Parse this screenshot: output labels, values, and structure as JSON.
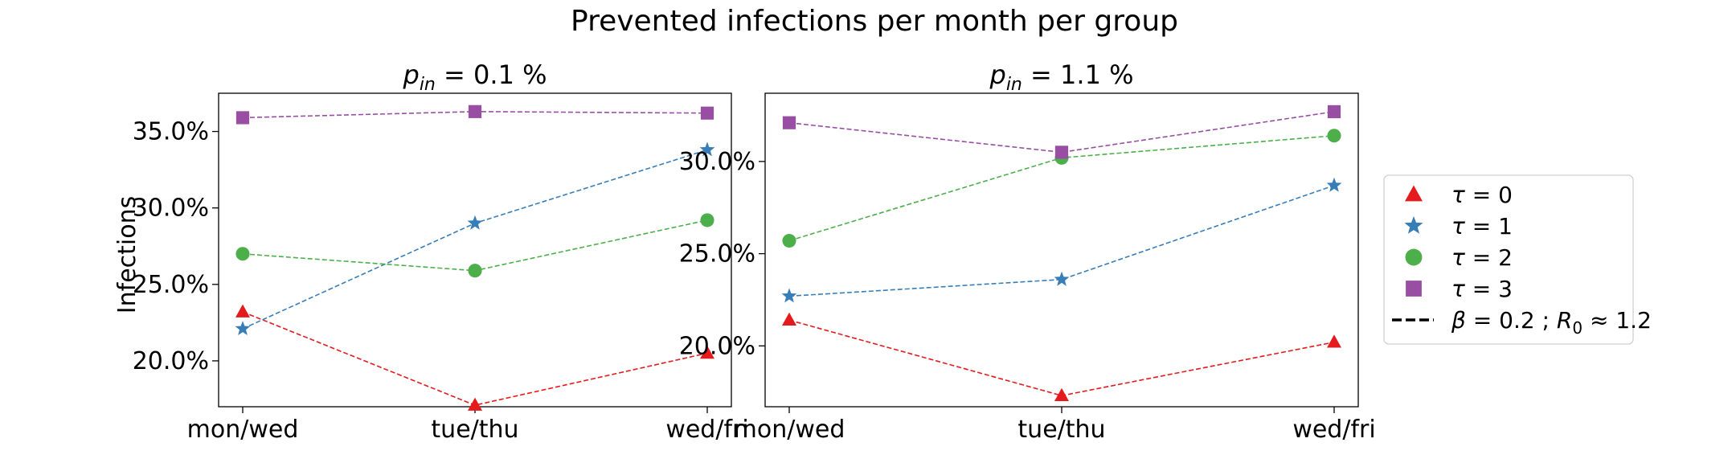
{
  "figure": {
    "suptitle": "Prevented infections per month per group",
    "ylabel": "Infections"
  },
  "legend": {
    "placement": "center-right",
    "entries": [
      {
        "label_prefix": "τ",
        "label_rest": " = 0",
        "marker": "triangle",
        "color": "#e41a1c",
        "style": "marker"
      },
      {
        "label_prefix": "τ",
        "label_rest": " = 1",
        "marker": "star",
        "color": "#377eb8",
        "style": "marker"
      },
      {
        "label_prefix": "τ",
        "label_rest": " = 2",
        "marker": "circle",
        "color": "#4daf4a",
        "style": "marker"
      },
      {
        "label_prefix": "τ",
        "label_rest": " = 3",
        "marker": "square",
        "color": "#984ea3",
        "style": "marker"
      },
      {
        "label_prefix": "β",
        "label_rest": " = 0.2 ; ",
        "label_r": "R",
        "label_r_sub": "0",
        "label_end": " ≈ 1.2",
        "style": "dashed-line",
        "color": "#000000"
      }
    ]
  },
  "chart_data": [
    {
      "type": "line",
      "title_p": "p",
      "title_sub": "in",
      "title_rest": " = 0.1 %",
      "categories": [
        "mon/wed",
        "tue/thu",
        "wed/fri"
      ],
      "ylim": [
        17.0,
        37.5
      ],
      "yticks": [
        20,
        25,
        30,
        35
      ],
      "ytick_labels": [
        "20.0%",
        "25.0%",
        "30.0%",
        "35.0%"
      ],
      "grid": false,
      "series": [
        {
          "name": "τ = 0",
          "marker": "triangle",
          "color": "#e41a1c",
          "values": [
            23.2,
            17.1,
            20.5
          ]
        },
        {
          "name": "τ = 1",
          "marker": "star",
          "color": "#377eb8",
          "values": [
            22.1,
            29.0,
            33.8
          ]
        },
        {
          "name": "τ = 2",
          "marker": "circle",
          "color": "#4daf4a",
          "values": [
            27.0,
            25.9,
            29.2
          ]
        },
        {
          "name": "τ = 3",
          "marker": "square",
          "color": "#984ea3",
          "values": [
            35.9,
            36.3,
            36.2
          ]
        }
      ]
    },
    {
      "type": "line",
      "title_p": "p",
      "title_sub": "in",
      "title_rest": " = 1.1 %",
      "categories": [
        "mon/wed",
        "tue/thu",
        "wed/fri"
      ],
      "ylim": [
        16.7,
        33.7
      ],
      "yticks": [
        20,
        25,
        30
      ],
      "ytick_labels": [
        "20.0%",
        "25.0%",
        "30.0%"
      ],
      "grid": false,
      "series": [
        {
          "name": "τ = 0",
          "marker": "triangle",
          "color": "#e41a1c",
          "values": [
            21.4,
            17.3,
            20.2
          ]
        },
        {
          "name": "τ = 1",
          "marker": "star",
          "color": "#377eb8",
          "values": [
            22.7,
            23.6,
            28.7
          ]
        },
        {
          "name": "τ = 2",
          "marker": "circle",
          "color": "#4daf4a",
          "values": [
            25.7,
            30.2,
            31.4
          ]
        },
        {
          "name": "τ = 3",
          "marker": "square",
          "color": "#984ea3",
          "values": [
            32.1,
            30.5,
            32.7
          ]
        }
      ]
    }
  ]
}
